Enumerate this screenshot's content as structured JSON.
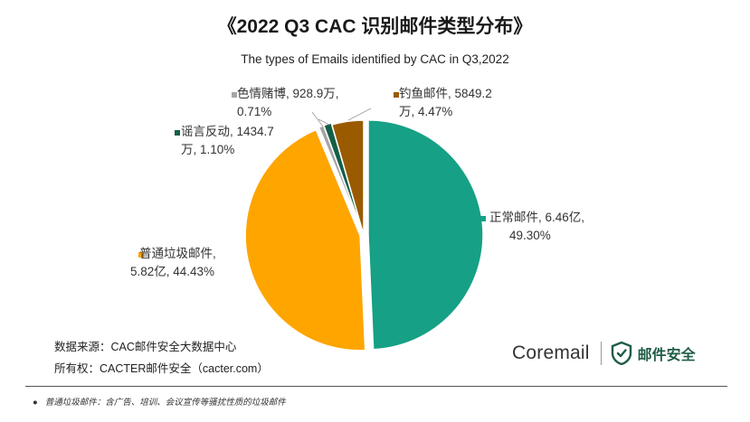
{
  "title": "《2022 Q3 CAC 识别邮件类型分布》",
  "chart_data": {
    "type": "pie",
    "title": "《2022 Q3 CAC 识别邮件类型分布》",
    "subtitle": "The types of Emails  identified by CAC in Q3,2022",
    "slices": [
      {
        "name": "正常邮件",
        "value": 49.3,
        "amount": "6.46亿",
        "label": [
          "正常邮件, 6.46亿,",
          "49.30%"
        ],
        "color": "#16a085"
      },
      {
        "name": "普通垃圾邮件",
        "value": 44.43,
        "amount": "5.82亿",
        "label": [
          "普通垃圾邮件,",
          "5.82亿, 44.43%"
        ],
        "color": "#ffa500"
      },
      {
        "name": "色情赌博",
        "value": 0.71,
        "amount": "928.9万",
        "label": [
          "色情赌博, 928.9万,",
          "0.71%"
        ],
        "color": "#a6a6a6"
      },
      {
        "name": "谣言反动",
        "value": 1.1,
        "amount": "1434.7万",
        "label": [
          "谣言反动, 1434.7",
          "万, 1.10%"
        ],
        "color": "#145f47"
      },
      {
        "name": "钓鱼邮件",
        "value": 4.47,
        "amount": "5849.2万",
        "label": [
          "钓鱼邮件, 5849.2",
          "万, 4.47%"
        ],
        "color": "#9a5a00"
      }
    ]
  },
  "source": {
    "data_source": "数据来源：CAC邮件安全大数据中心",
    "copyright": "所有权：CACTER邮件安全（cacter.com）"
  },
  "brand": {
    "coremail": "Coremail",
    "security": "邮件安全"
  },
  "footnote": {
    "bullet": "●",
    "text": "普通垃圾邮件：含广告、培训、会议宣传等骚扰性质的垃圾邮件"
  }
}
